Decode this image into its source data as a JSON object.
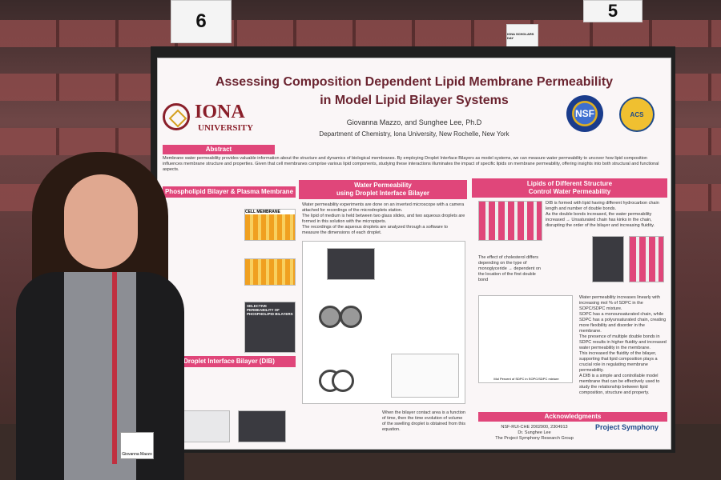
{
  "scene": {
    "table_number_left": "6",
    "table_number_right": "5",
    "card_tiny_text": "IONA SCHOLARS DAY"
  },
  "poster": {
    "title_line1": "Assessing Composition Dependent Lipid Membrane Permeability",
    "title_line2": "in Model Lipid Bilayer Systems",
    "authors": "Giovanna Mazzo, and Sunghee Lee, Ph.D",
    "department": "Department of Chemistry, Iona University, New Rochelle, New York",
    "logo_name": "IONA",
    "logo_sub": "UNIVERSITY",
    "nsf_logo": "NSF",
    "acs_logo": "ACS",
    "sections": {
      "abstract_head": "Abstract",
      "abstract_text": "Membrane water permeability provides valuable information about the structure and dynamics of biological membranes. By employing Droplet Interface Bilayers as model systems, we can measure water permeability to uncover how lipid composition influences membrane structure and properties. Given that cell membranes comprise various lipid components, studying these interactions illuminates the impact of specific lipids on membrane permeability, offering insights into both structural and functional aspects.",
      "phospho_head": "Phospholipid Bilayer & Plasma Membrane",
      "phospho_fig_label": "CELL MEMBRANE",
      "selective_label": "SELECTIVE PERMEABILITY OF PHOSPHOLIPID BILAYERS",
      "dib_head": "Droplet Interface Bilayer (DIB)",
      "water_head_1": "Water Permeability",
      "water_head_2": "using Droplet Interface Bilayer",
      "water_bullet_1": "Water permeability experiments are done on an inverted microscope with a camera attached for recordings of the microdroplets station.",
      "water_bullet_2": "The lipid of medium is held between two glass slides, and two aqueous droplets are formed in this solution with the micropipets.",
      "water_bullet_3": "The recordings of the aqueous droplets are analyzed through a software to measure the dimensions of each droplet.",
      "lipids_head_1": "Lipids of Different Structure",
      "lipids_head_2": "Control Water Permeability",
      "lipids_bullet_1": "DIB is formed with lipid having different hydrocarbon chain length and number of double bonds.",
      "lipids_bullet_2": "As the double bonds increased, the water permeability increased → Unsaturated chain has kinks in the chain, disrupting the order of the bilayer and increasing fluidity.",
      "cholesterol_text": "The effect of cholesterol differs depending on the type of monoglyceride → dependent on the location of the first double bond",
      "graph_xlabel": "Mol Percent of SDPC in SOPC/SDPC mixture",
      "right_bullet_1": "Water permeability increases linearly with increasing mol % of SDPC in the SOPC/SDPC mixture.",
      "right_bullet_2": "SOPC has a monounsaturated chain, while SDPC has a polyunsaturated chain, creating more flexibility and disorder in the membrane.",
      "right_bullet_3": "The presence of multiple double bonds in SDPC results in higher fluidity and increased water permeability in the membrane.",
      "right_bullet_4": "This increased the fluidity of the bilayer, supporting that lipid composition plays a crucial role in regulating membrane permeability.",
      "right_bullet_5": "A DIB is a simple and controllable model membrane that can be effectively used to study the relationship between lipid composition, structure and property.",
      "ack_head": "Acknowledgments",
      "ack_line1": "NSF-RUI-CHE 2002900, 2304913",
      "ack_line2": "Dr. Sunghee Lee",
      "ack_line3": "The Project Symphony Research Group",
      "symphony_logo": "Project Symphony",
      "bottom_mid_text": "When the bilayer contact area is a function of time, then the time evolution of volume of the swelling droplet is obtained from this equation."
    }
  },
  "person": {
    "badge_name": "Giovanna Mazzo"
  },
  "colors": {
    "accent_pink": "#e0467a",
    "title_maroon": "#6b2430",
    "iona_maroon": "#8a1f2a"
  }
}
